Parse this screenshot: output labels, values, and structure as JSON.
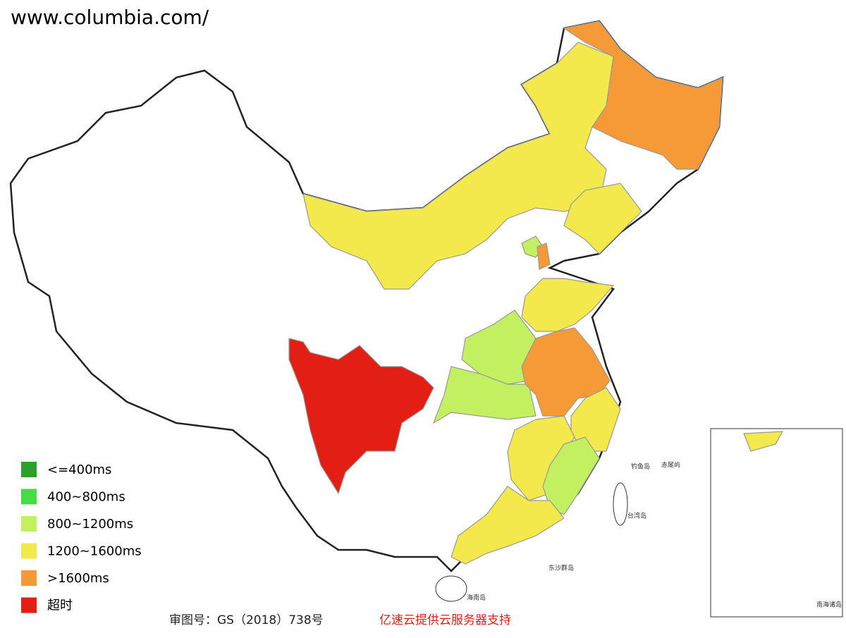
{
  "header": {
    "url": "www.columbia.com/"
  },
  "legend": {
    "items": [
      {
        "label": "<=400ms",
        "color": "#2ca02c"
      },
      {
        "label": "400~800ms",
        "color": "#44dd44"
      },
      {
        "label": "800~1200ms",
        "color": "#c2f060"
      },
      {
        "label": "1200~1600ms",
        "color": "#f3e94c"
      },
      {
        "label": ">1600ms",
        "color": "#f59a36"
      },
      {
        "label": "超时",
        "color": "#e31e14"
      }
    ]
  },
  "map_labels": [
    "钓鱼岛",
    "赤尾屿",
    "台湾岛",
    "东沙群岛",
    "海南岛",
    "南海诸岛"
  ],
  "footer": {
    "approval": "审图号：GS（2018）738号",
    "credit": "亿速云提供云服务器支持"
  }
}
